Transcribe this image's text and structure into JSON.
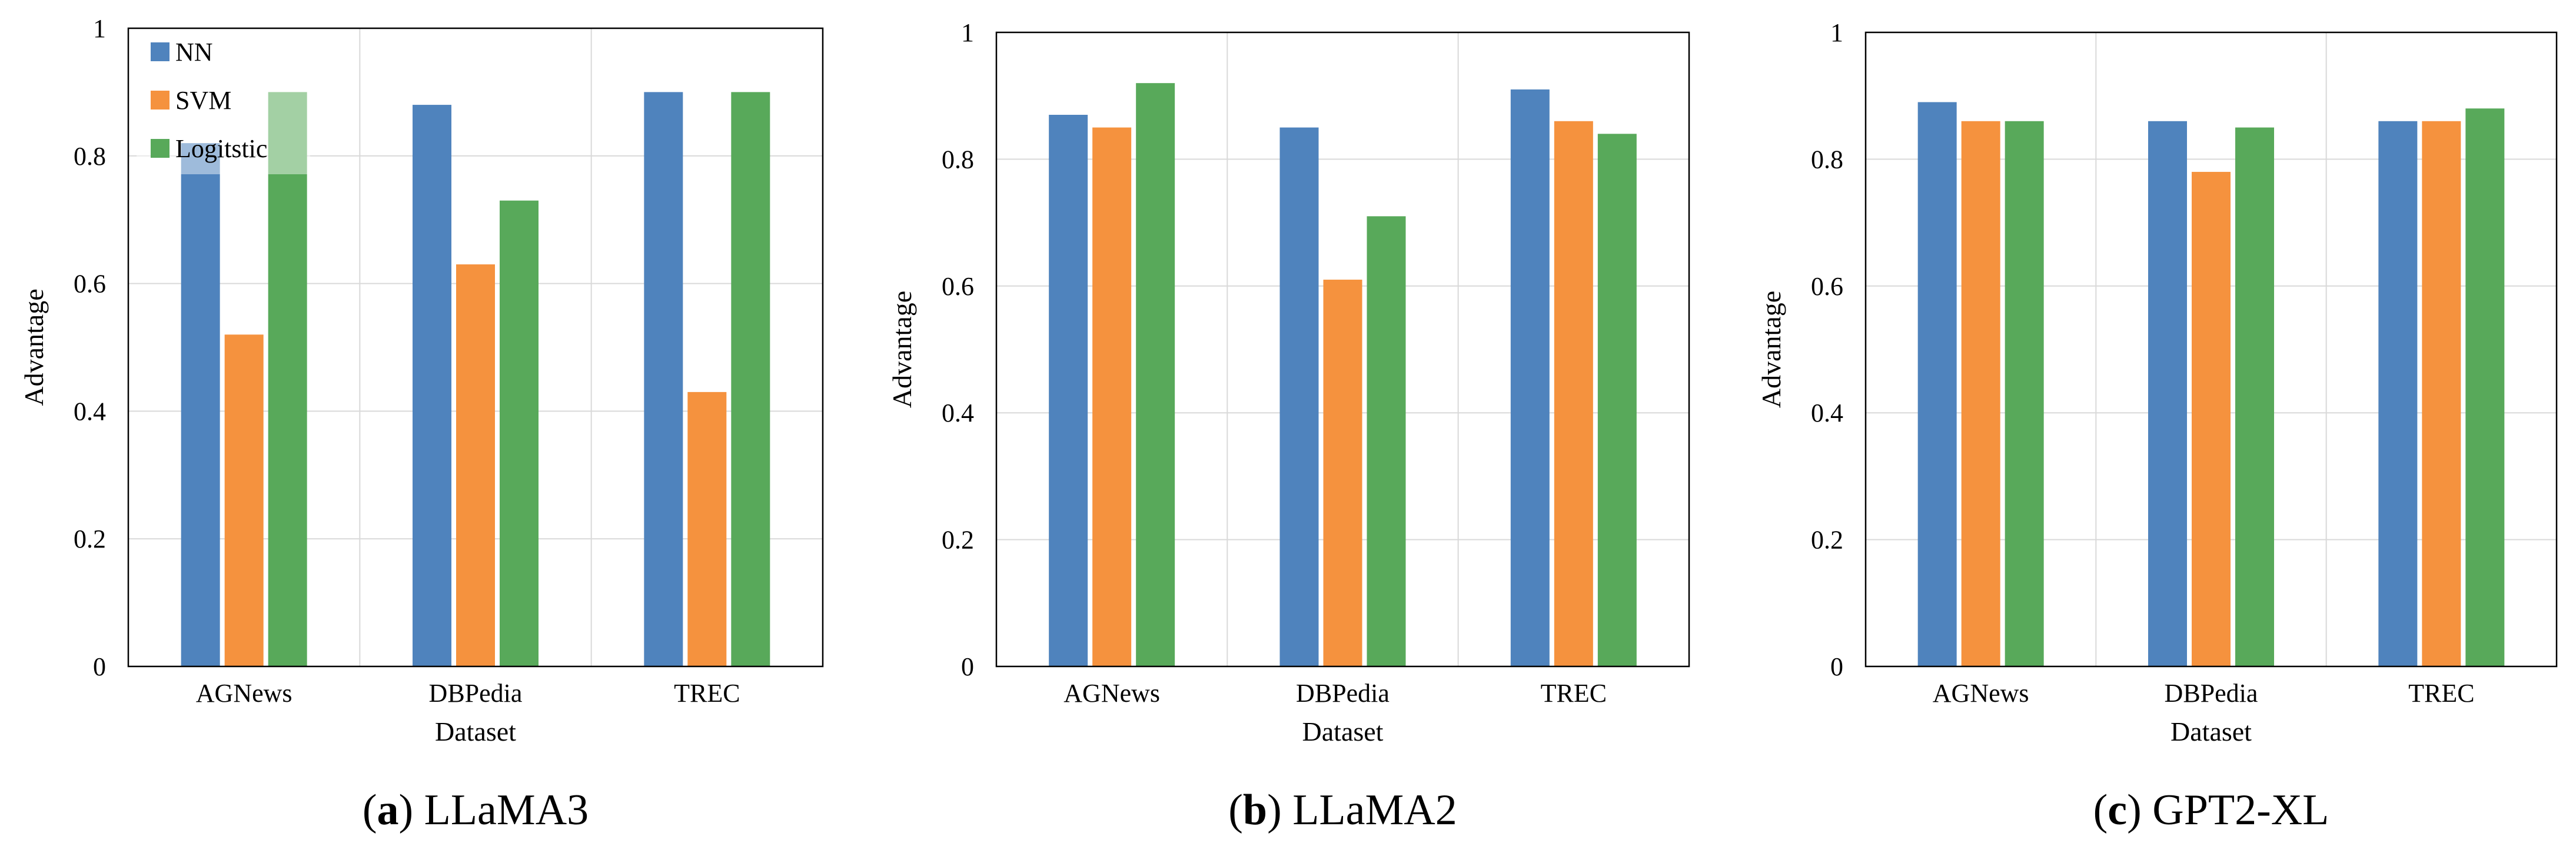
{
  "chart_data": [
    {
      "type": "bar",
      "caption_letter": "a",
      "caption_text": "LLaMA3",
      "categories": [
        "AGNews",
        "DBPedia",
        "TREC"
      ],
      "series": [
        {
          "name": "NN",
          "values": [
            0.82,
            0.88,
            0.9
          ]
        },
        {
          "name": "SVM",
          "values": [
            0.52,
            0.63,
            0.43
          ]
        },
        {
          "name": "Logitstic",
          "values": [
            0.9,
            0.73,
            0.9
          ]
        }
      ],
      "xlabel": "Dataset",
      "ylabel": "Advantage",
      "ylim": [
        0,
        1
      ],
      "yticks": [
        "0",
        "0.2",
        "0.4",
        "0.6",
        "0.8",
        "1"
      ],
      "legend": "top-left",
      "grid": true
    },
    {
      "type": "bar",
      "caption_letter": "b",
      "caption_text": "LLaMA2",
      "categories": [
        "AGNews",
        "DBPedia",
        "TREC"
      ],
      "series": [
        {
          "name": "NN",
          "values": [
            0.87,
            0.85,
            0.91
          ]
        },
        {
          "name": "SVM",
          "values": [
            0.85,
            0.61,
            0.86
          ]
        },
        {
          "name": "Logitstic",
          "values": [
            0.92,
            0.71,
            0.84
          ]
        }
      ],
      "xlabel": "Dataset",
      "ylabel": "Advantage",
      "ylim": [
        0,
        1
      ],
      "yticks": [
        "0",
        "0.2",
        "0.4",
        "0.6",
        "0.8",
        "1"
      ],
      "grid": true
    },
    {
      "type": "bar",
      "caption_letter": "c",
      "caption_text": "GPT2-XL",
      "categories": [
        "AGNews",
        "DBPedia",
        "TREC"
      ],
      "series": [
        {
          "name": "NN",
          "values": [
            0.89,
            0.86,
            0.86
          ]
        },
        {
          "name": "SVM",
          "values": [
            0.86,
            0.78,
            0.86
          ]
        },
        {
          "name": "Logitstic",
          "values": [
            0.86,
            0.85,
            0.88
          ]
        }
      ],
      "xlabel": "Dataset",
      "ylabel": "Advantage",
      "ylim": [
        0,
        1
      ],
      "yticks": [
        "0",
        "0.2",
        "0.4",
        "0.6",
        "0.8",
        "1"
      ],
      "grid": true
    }
  ],
  "colors": {
    "NN": "#4f83bd",
    "SVM": "#f5923e",
    "Logitstic": "#58a95a"
  }
}
